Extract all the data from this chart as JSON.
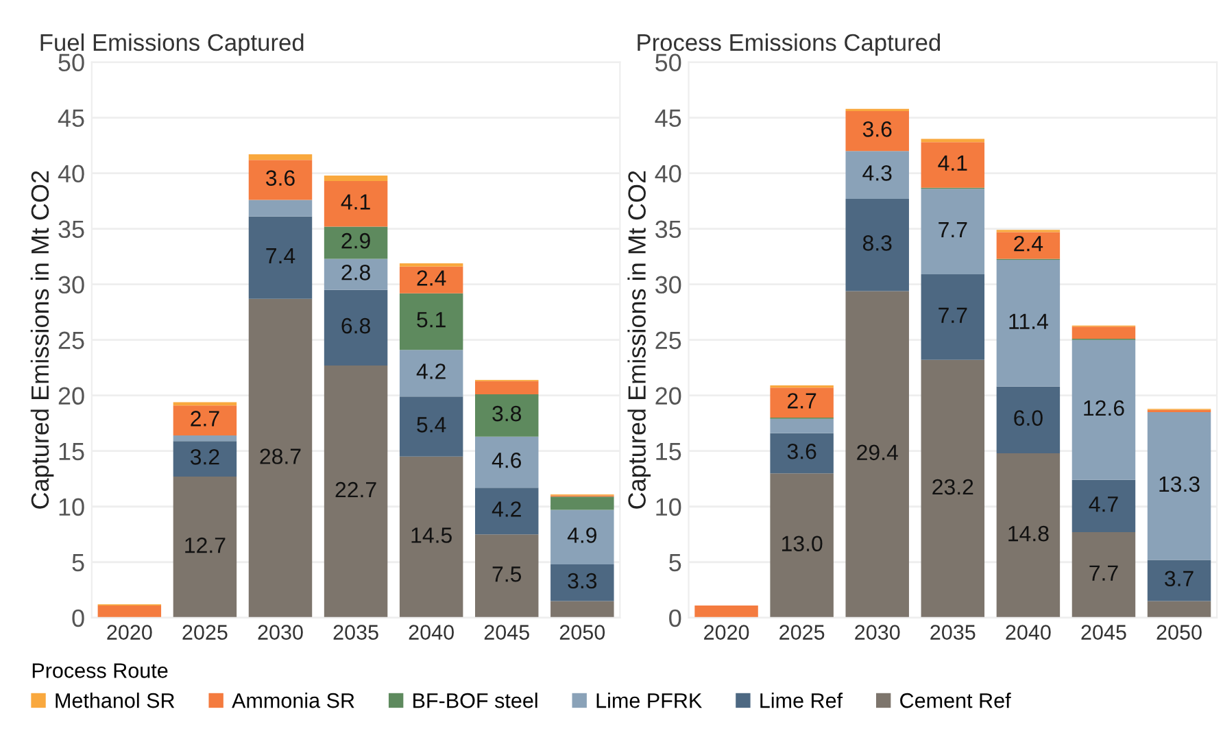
{
  "chart_data": [
    {
      "type": "bar",
      "stacked": true,
      "title": "Fuel Emissions Captured",
      "ylabel": "Captured Emissions in Mt CO2",
      "categories": [
        "2020",
        "2025",
        "2030",
        "2035",
        "2040",
        "2045",
        "2050"
      ],
      "ylim": [
        0,
        50
      ],
      "yticks": [
        0,
        5,
        10,
        15,
        20,
        25,
        30,
        35,
        40,
        45,
        50
      ],
      "grid": "y",
      "legend": "bottom",
      "legend_title": "Process Route",
      "series": [
        {
          "name": "Cement Ref",
          "color": "#7d756c",
          "values": [
            null,
            12.7,
            28.7,
            22.7,
            14.5,
            7.5,
            1.5
          ],
          "value_labels": [
            null,
            "12.7",
            "28.7",
            "22.7",
            "14.5",
            "7.5",
            null
          ]
        },
        {
          "name": "Lime Ref",
          "color": "#4d6882",
          "values": [
            null,
            3.2,
            7.4,
            6.8,
            5.4,
            4.2,
            3.3
          ],
          "value_labels": [
            null,
            "3.2",
            "7.4",
            "6.8",
            "5.4",
            "4.2",
            "3.3"
          ]
        },
        {
          "name": "Lime PFRK",
          "color": "#8aa2b8",
          "values": [
            null,
            0.5,
            1.5,
            2.8,
            4.2,
            4.6,
            4.9
          ],
          "value_labels": [
            null,
            null,
            null,
            "2.8",
            "4.2",
            "4.6",
            "4.9"
          ]
        },
        {
          "name": "BF-BOF steel",
          "color": "#5e8a5e",
          "values": [
            null,
            null,
            null,
            2.9,
            5.1,
            3.8,
            1.2
          ],
          "value_labels": [
            null,
            null,
            null,
            "2.9",
            "5.1",
            "3.8",
            null
          ]
        },
        {
          "name": "Ammonia SR",
          "color": "#f47b3f",
          "values": [
            1.1,
            2.7,
            3.6,
            4.1,
            2.4,
            1.2,
            0.1
          ],
          "value_labels": [
            null,
            "2.7",
            "3.6",
            "4.1",
            "2.4",
            null,
            null
          ]
        },
        {
          "name": "Methanol SR",
          "color": "#f9a83e",
          "values": [
            0.1,
            0.3,
            0.5,
            0.5,
            0.3,
            0.1,
            0.1
          ],
          "value_labels": [
            null,
            null,
            null,
            null,
            null,
            null,
            null
          ]
        }
      ]
    },
    {
      "type": "bar",
      "stacked": true,
      "title": "Process Emissions Captured",
      "ylabel": "Captured Emissions in Mt CO2",
      "categories": [
        "2020",
        "2025",
        "2030",
        "2035",
        "2040",
        "2045",
        "2050"
      ],
      "ylim": [
        0,
        50
      ],
      "yticks": [
        0,
        5,
        10,
        15,
        20,
        25,
        30,
        35,
        40,
        45,
        50
      ],
      "grid": "y",
      "series": [
        {
          "color": "#7d756c",
          "values": [
            null,
            13.0,
            29.4,
            23.2,
            14.8,
            7.7,
            1.5
          ],
          "value_labels": [
            null,
            "13.0",
            "29.4",
            "23.2",
            "14.8",
            "7.7",
            null
          ]
        },
        {
          "color": "#4d6882",
          "values": [
            null,
            3.6,
            8.3,
            7.7,
            6.0,
            4.7,
            3.7
          ],
          "value_labels": [
            null,
            "3.6",
            "8.3",
            "7.7",
            "6.0",
            "4.7",
            "3.7"
          ]
        },
        {
          "color": "#8aa2b8",
          "values": [
            null,
            1.3,
            4.3,
            7.7,
            11.4,
            12.6,
            13.3
          ],
          "value_labels": [
            null,
            null,
            "4.3",
            "7.7",
            "11.4",
            "12.6",
            "13.3"
          ]
        },
        {
          "color": "#5e8a5e",
          "values": [
            null,
            0.1,
            null,
            0.1,
            0.1,
            0.1,
            null
          ],
          "value_labels": [
            null,
            null,
            null,
            null,
            null,
            null,
            null
          ]
        },
        {
          "color": "#f47b3f",
          "values": [
            1.1,
            2.7,
            3.6,
            4.1,
            2.4,
            1.1,
            0.2
          ],
          "value_labels": [
            null,
            "2.7",
            "3.6",
            "4.1",
            "2.4",
            null,
            null
          ]
        },
        {
          "color": "#f9a83e",
          "values": [
            null,
            0.2,
            0.2,
            0.3,
            0.2,
            0.1,
            0.1
          ],
          "value_labels": [
            null,
            null,
            null,
            null,
            null,
            null,
            null
          ]
        }
      ]
    }
  ]
}
